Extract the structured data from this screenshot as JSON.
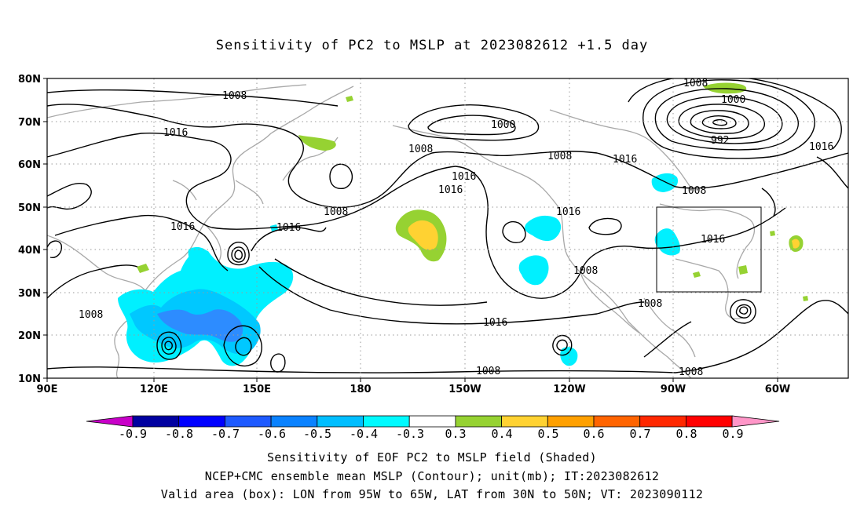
{
  "title": "Sensitivity of PC2 to MSLP at 2023082612 +1.5 day",
  "map": {
    "lat_labels": [
      "80N",
      "70N",
      "60N",
      "50N",
      "40N",
      "30N",
      "20N",
      "10N"
    ],
    "lon_labels": [
      "90E",
      "120E",
      "150E",
      "180",
      "150W",
      "120W",
      "90W",
      "60W"
    ],
    "contour_labels": [
      "1008",
      "1016",
      "1000",
      "1008",
      "1008",
      "1016",
      "1016",
      "1008",
      "1016",
      "1016",
      "1008",
      "1000",
      "992",
      "1016",
      "1008",
      "1016",
      "1016",
      "1008",
      "1008",
      "1016",
      "1008",
      "1008",
      "1008"
    ],
    "box": "Valid area box: LON 95W-65W, LAT 30N-50N"
  },
  "colorbar": {
    "labels": [
      "-0.9",
      "-0.8",
      "-0.7",
      "-0.6",
      "-0.5",
      "-0.4",
      "-0.3",
      "0.3",
      "0.4",
      "0.5",
      "0.6",
      "0.7",
      "0.8",
      "0.9"
    ],
    "colors": [
      "#c800c8",
      "#0000a0",
      "#0000ff",
      "#1e5aff",
      "#0a82ff",
      "#00beff",
      "#00faff",
      "#ffffff",
      "#96d232",
      "#ffd232",
      "#ffa000",
      "#ff6400",
      "#ff2800",
      "#ff0000",
      "#ff96c8"
    ]
  },
  "captions": [
    "Sensitivity of EOF PC2 to MSLP field (Shaded)",
    "NCEP+CMC ensemble mean MSLP (Contour); unit(mb); IT:2023082612",
    "Valid area (box): LON from 95W to 65W, LAT from 30N to 50N; VT: 2023090112"
  ],
  "colors": {
    "cyan": "#00f0ff",
    "lightblue": "#00c8ff",
    "blue": "#2d8cff",
    "green": "#96d232",
    "yellow": "#ffd232",
    "coast": "#a8a8a8"
  }
}
